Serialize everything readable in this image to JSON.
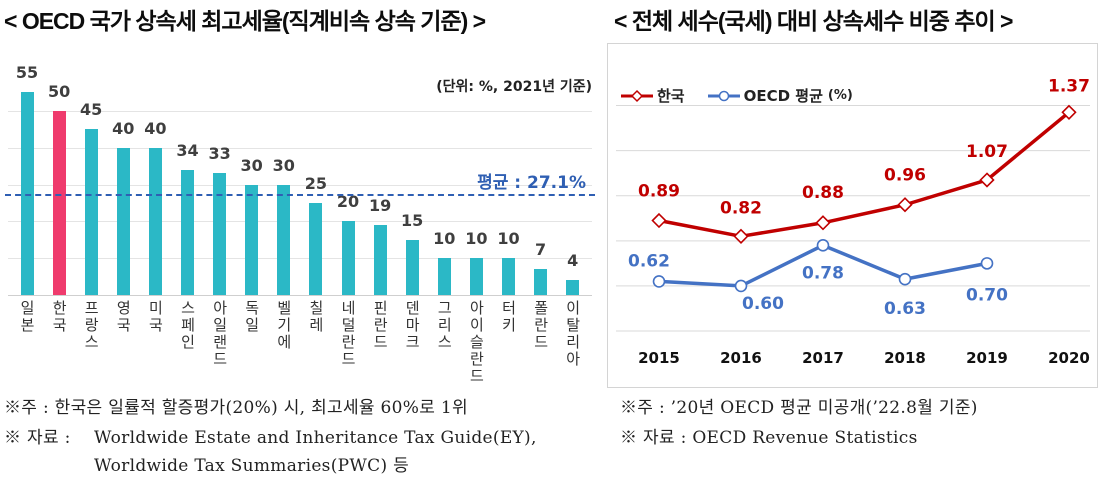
{
  "chart_data": [
    {
      "type": "bar",
      "title": "< OECD 국가 상속세 최고세율(직계비속 상속 기준) >",
      "unit_note": "(단위: %, 2021년 기준)",
      "categories": [
        "일본",
        "한국",
        "프랑스",
        "영국",
        "미국",
        "스페인",
        "아일랜드",
        "독일",
        "벨기에",
        "칠레",
        "네덜란드",
        "핀란드",
        "덴마크",
        "그리스",
        "아이슬란드",
        "터키",
        "폴란드",
        "이탈리아"
      ],
      "values": [
        55,
        50,
        45,
        40,
        40,
        34,
        33,
        30,
        30,
        25,
        20,
        19,
        15,
        10,
        10,
        10,
        7,
        4
      ],
      "highlight_index": 1,
      "bar_color": "#2bb8c6",
      "highlight_color": "#ef3b6d",
      "average": {
        "value": 27.1,
        "label": "평균 : 27.1%",
        "color": "#2f5fb3"
      },
      "ylim": [
        0,
        60
      ],
      "grid": true
    },
    {
      "type": "line",
      "title": "< 전체 세수(국세) 대비 상속세수 비중 추이 >",
      "x": [
        "2015",
        "2016",
        "2017",
        "2018",
        "2019",
        "2020"
      ],
      "series": [
        {
          "name": "한국",
          "values": [
            0.89,
            0.82,
            0.88,
            0.96,
            1.07,
            1.37
          ],
          "value_labels": [
            "0.89",
            "0.82",
            "0.88",
            "0.96",
            "1.07",
            "1.37"
          ],
          "color": "#c00000",
          "marker": "diamond"
        },
        {
          "name": "OECD 평균",
          "values": [
            0.62,
            0.6,
            0.78,
            0.63,
            0.7,
            null
          ],
          "value_labels": [
            "0.62",
            "0.60",
            "0.78",
            "0.63",
            "0.70"
          ],
          "color": "#4472c4",
          "marker": "circle"
        }
      ],
      "legend_unit": "(%)",
      "legend_position": "top-left",
      "ylim": [
        0.4,
        1.5
      ],
      "grid": true
    }
  ],
  "footnotes": {
    "left": {
      "note": "※주 : 한국은 일률적 할증평가(20%) 시, 최고세율 60%로 1위",
      "source_prefix": "※ 자료 : ",
      "source_line_1": "Worldwide Estate and Inheritance Tax Guide(EY),",
      "source_line_2": "Worldwide Tax Summaries(PWC) 등"
    },
    "right": {
      "note": "※주 : ’20년 OECD 평균 미공개(’22.8월 기준)",
      "source": "※ 자료 : OECD Revenue Statistics"
    }
  }
}
